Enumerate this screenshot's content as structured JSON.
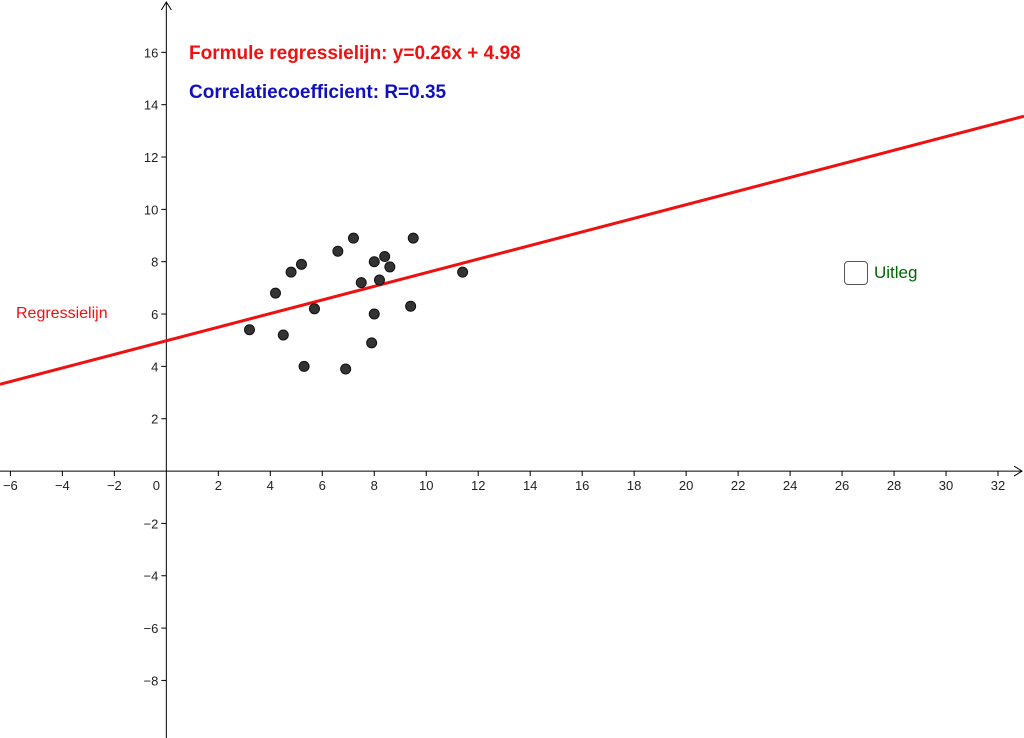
{
  "chart_data": {
    "type": "scatter",
    "title": "",
    "xlabel": "",
    "ylabel": "",
    "xlim": [
      -6.4,
      33.0
    ],
    "ylim": [
      -10.2,
      18.0
    ],
    "grid": false,
    "x_ticks": [
      -6,
      -4,
      -2,
      0,
      2,
      4,
      6,
      8,
      10,
      12,
      14,
      16,
      18,
      20,
      22,
      24,
      26,
      28,
      30,
      32
    ],
    "y_ticks": [
      -8,
      -6,
      -4,
      -2,
      2,
      4,
      6,
      8,
      10,
      12,
      14,
      16
    ],
    "series": [
      {
        "points": [
          [
            3.2,
            5.4
          ],
          [
            4.2,
            6.8
          ],
          [
            4.5,
            5.2
          ],
          [
            4.8,
            7.6
          ],
          [
            5.2,
            7.9
          ],
          [
            5.3,
            4.0
          ],
          [
            5.7,
            6.2
          ],
          [
            6.6,
            8.4
          ],
          [
            6.9,
            3.9
          ],
          [
            7.2,
            8.9
          ],
          [
            7.5,
            7.2
          ],
          [
            7.9,
            4.9
          ],
          [
            8.0,
            8.0
          ],
          [
            8.0,
            6.0
          ],
          [
            8.2,
            7.3
          ],
          [
            8.4,
            8.2
          ],
          [
            8.6,
            7.8
          ],
          [
            9.4,
            6.3
          ],
          [
            9.5,
            8.9
          ],
          [
            11.4,
            7.6
          ]
        ]
      },
      {
        "name": "Regressielijn",
        "type": "line",
        "slope": 0.26,
        "intercept": 4.98
      }
    ],
    "colors": {
      "points": "#333333",
      "regression": "#ee1111",
      "formula": "#ee1111",
      "correlation": "#1111bb",
      "checkbox_label": "#006600",
      "axis": "#000000"
    }
  },
  "formula_text": "Formule regressielijn:  y=0.26x + 4.98",
  "correlation_text": "Correlatiecoefficient:   R=0.35",
  "line_label": "Regressielijn",
  "checkbox": {
    "label": "Uitleg",
    "checked": false
  }
}
